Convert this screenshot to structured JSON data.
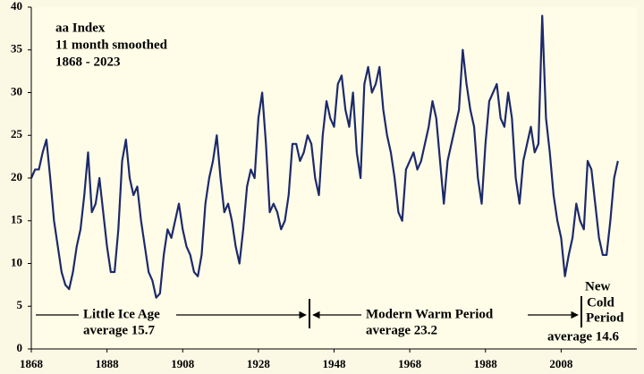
{
  "chart_data": {
    "type": "line",
    "title": "aa Index",
    "subtitle": "11 month smoothed",
    "date_range": "1868 - 2023",
    "x": [
      1868,
      1869,
      1870,
      1871,
      1872,
      1873,
      1874,
      1875,
      1876,
      1877,
      1878,
      1879,
      1880,
      1881,
      1882,
      1883,
      1884,
      1885,
      1886,
      1887,
      1888,
      1889,
      1890,
      1891,
      1892,
      1893,
      1894,
      1895,
      1896,
      1897,
      1898,
      1899,
      1900,
      1901,
      1902,
      1903,
      1904,
      1905,
      1906,
      1907,
      1908,
      1909,
      1910,
      1911,
      1912,
      1913,
      1914,
      1915,
      1916,
      1917,
      1918,
      1919,
      1920,
      1921,
      1922,
      1923,
      1924,
      1925,
      1926,
      1927,
      1928,
      1929,
      1930,
      1931,
      1932,
      1933,
      1934,
      1935,
      1936,
      1937,
      1938,
      1939,
      1940,
      1941,
      1942,
      1943,
      1944,
      1945,
      1946,
      1947,
      1948,
      1949,
      1950,
      1951,
      1952,
      1953,
      1954,
      1955,
      1956,
      1957,
      1958,
      1959,
      1960,
      1961,
      1962,
      1963,
      1964,
      1965,
      1966,
      1967,
      1968,
      1969,
      1970,
      1971,
      1972,
      1973,
      1974,
      1975,
      1976,
      1977,
      1978,
      1979,
      1980,
      1981,
      1982,
      1983,
      1984,
      1985,
      1986,
      1987,
      1988,
      1989,
      1990,
      1991,
      1992,
      1993,
      1994,
      1995,
      1996,
      1997,
      1998,
      1999,
      2000,
      2001,
      2002,
      2003,
      2004,
      2005,
      2006,
      2007,
      2008,
      2009,
      2010,
      2011,
      2012,
      2013,
      2014,
      2015,
      2016,
      2017,
      2018,
      2019,
      2020,
      2021,
      2022,
      2023
    ],
    "values": [
      20,
      21,
      21,
      23,
      24.5,
      20,
      15,
      12,
      9,
      7.5,
      7,
      9,
      12,
      14,
      18,
      23,
      16,
      17,
      20,
      16,
      12,
      9,
      9,
      14,
      22,
      24.5,
      20,
      18,
      19,
      15,
      12,
      9,
      8,
      6,
      6.5,
      11,
      14,
      13,
      15,
      17,
      14,
      12,
      11,
      9,
      8.5,
      11,
      17,
      20,
      22,
      25,
      20,
      16,
      17,
      15,
      12,
      10,
      14,
      19,
      21,
      20,
      27,
      30,
      24,
      16,
      17,
      16,
      14,
      15,
      18,
      24,
      24,
      22,
      23,
      25,
      24,
      20,
      18,
      25,
      29,
      27,
      26,
      31,
      32,
      28,
      26,
      30,
      23,
      20,
      31,
      33,
      30,
      31,
      33,
      28,
      25,
      23,
      20,
      16,
      15,
      21,
      22,
      23,
      21,
      22,
      24,
      26,
      29,
      27,
      22,
      17,
      22,
      24,
      26,
      28,
      35,
      31,
      28,
      26,
      20,
      17,
      24,
      29,
      30,
      31,
      27,
      26,
      30,
      27,
      20,
      17,
      22,
      24,
      26,
      23,
      24,
      39,
      27,
      23,
      18,
      15,
      13,
      8.5,
      11,
      13,
      17,
      15,
      14,
      22,
      21,
      17,
      13,
      11,
      11,
      15,
      20,
      22
    ],
    "color": "#1c2a6b",
    "xlim": [
      1868,
      2028
    ],
    "xticks": [
      1868,
      1888,
      1908,
      1928,
      1948,
      1968,
      1988,
      2008
    ],
    "ylim": [
      0,
      40
    ],
    "yticks": [
      0,
      5,
      10,
      15,
      20,
      25,
      30,
      35,
      40
    ],
    "annotations": [
      {
        "lines": [
          "Little Ice Age",
          "average 15.7"
        ]
      },
      {
        "lines": [
          "Modern Warm Period",
          "average 23.2"
        ]
      },
      {
        "lines": [
          "New",
          "Cold",
          "Period",
          "average 14.6"
        ]
      }
    ]
  }
}
